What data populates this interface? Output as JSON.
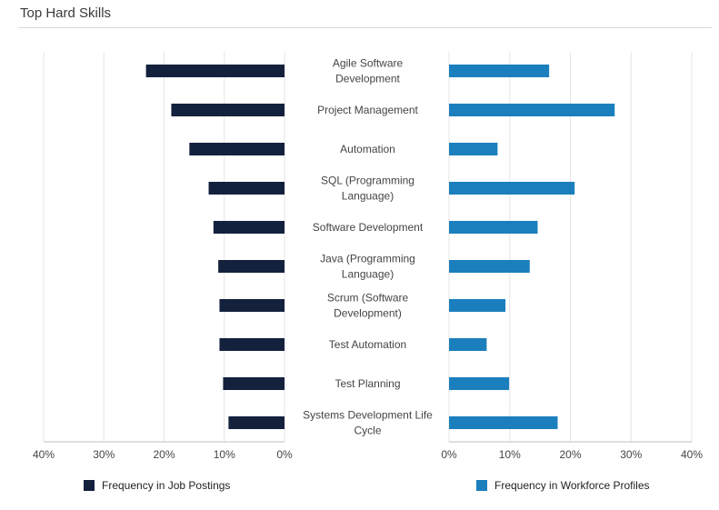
{
  "title": "Top Hard Skills",
  "chart_data": {
    "type": "bar",
    "orientation": "horizontal-butterfly",
    "categories": [
      [
        "Agile Software",
        "Development"
      ],
      [
        "Project Management"
      ],
      [
        "Automation"
      ],
      [
        "SQL (Programming",
        "Language)"
      ],
      [
        "Software Development"
      ],
      [
        "Java (Programming",
        "Language)"
      ],
      [
        "Scrum (Software",
        "Development)"
      ],
      [
        "Test Automation"
      ],
      [
        "Test Planning"
      ],
      [
        "Systems Development Life",
        "Cycle"
      ]
    ],
    "series": [
      {
        "name": "Frequency in Job Postings",
        "color": "#14213d",
        "side": "left",
        "values": [
          23,
          18.8,
          15.8,
          12.6,
          11.8,
          11.0,
          10.8,
          10.8,
          10.2,
          9.3
        ]
      },
      {
        "name": "Frequency in Workforce Profiles",
        "color": "#1b7fbd",
        "side": "right",
        "values": [
          16.5,
          27.3,
          8.0,
          20.7,
          14.6,
          13.3,
          9.3,
          6.2,
          9.9,
          17.9
        ]
      }
    ],
    "xlim": [
      0,
      40
    ],
    "x_ticks": [
      "40%",
      "30%",
      "20%",
      "10%",
      "0%",
      "0%",
      "10%",
      "20%",
      "30%",
      "40%"
    ],
    "grid": true,
    "legend_position": "bottom"
  }
}
